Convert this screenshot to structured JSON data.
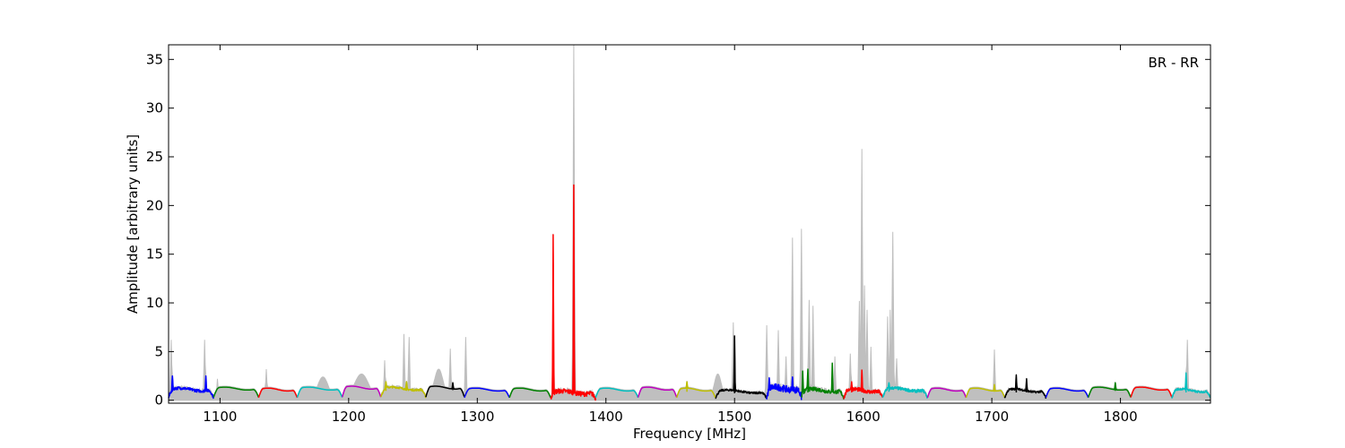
{
  "chart_data": {
    "type": "line",
    "title": "",
    "annotation": "BR - RR",
    "xlabel": "Frequency [MHz]",
    "ylabel": "Amplitude [arbitrary units]",
    "xlim": [
      1060,
      1870
    ],
    "ylim": [
      -0.3,
      36.5
    ],
    "xticks": [
      1100,
      1200,
      1300,
      1400,
      1500,
      1600,
      1700,
      1800
    ],
    "yticks": [
      0,
      5,
      10,
      15,
      20,
      25,
      30,
      35
    ],
    "grid": false,
    "legend": "none",
    "background_series": {
      "color": "#bfbfbf",
      "spikes": [
        [
          1062,
          6.2
        ],
        [
          1088,
          6.2
        ],
        [
          1098,
          2.2
        ],
        [
          1136,
          3.2
        ],
        [
          1228,
          4.1
        ],
        [
          1243,
          6.8
        ],
        [
          1247,
          6.5
        ],
        [
          1279,
          5.3
        ],
        [
          1291,
          6.5
        ],
        [
          1375,
          36.5
        ],
        [
          1499,
          8.0
        ],
        [
          1525,
          7.7
        ],
        [
          1534,
          7.2
        ],
        [
          1540,
          4.5
        ],
        [
          1545,
          16.7
        ],
        [
          1552,
          17.6
        ],
        [
          1558,
          10.3
        ],
        [
          1561,
          9.7
        ],
        [
          1578,
          4.5
        ],
        [
          1590,
          4.8
        ],
        [
          1597,
          10.2
        ],
        [
          1599,
          25.8
        ],
        [
          1601,
          11.8
        ],
        [
          1603,
          9.3
        ],
        [
          1606,
          5.5
        ],
        [
          1619,
          8.6
        ],
        [
          1621,
          9.3
        ],
        [
          1623,
          17.3
        ],
        [
          1626,
          4.3
        ],
        [
          1702,
          5.2
        ],
        [
          1852,
          6.2
        ]
      ],
      "humps": [
        [
          1180,
          2.4,
          6
        ],
        [
          1210,
          2.7,
          8
        ],
        [
          1270,
          3.2,
          5
        ],
        [
          1487,
          2.7,
          4
        ]
      ]
    },
    "series": [
      {
        "color": "#0000ff",
        "x_start": 1060,
        "x_end": 1095,
        "base": 1.1,
        "spikes": [
          [
            1063,
            2.5
          ],
          [
            1089,
            2.5
          ]
        ],
        "noise": 0.15
      },
      {
        "color": "#008000",
        "x_start": 1095,
        "x_end": 1130,
        "base": 1.2,
        "spikes": [],
        "noise": 0
      },
      {
        "color": "#ff0000",
        "x_start": 1130,
        "x_end": 1160,
        "base": 1.1,
        "spikes": [],
        "noise": 0
      },
      {
        "color": "#00bfbf",
        "x_start": 1160,
        "x_end": 1195,
        "base": 1.2,
        "spikes": [],
        "noise": 0
      },
      {
        "color": "#bf00bf",
        "x_start": 1195,
        "x_end": 1225,
        "base": 1.3,
        "spikes": [],
        "noise": 0
      },
      {
        "color": "#bfbf00",
        "x_start": 1225,
        "x_end": 1260,
        "base": 1.2,
        "spikes": [
          [
            1229,
            1.9
          ],
          [
            1245,
            1.9
          ]
        ],
        "noise": 0.1
      },
      {
        "color": "#000000",
        "x_start": 1260,
        "x_end": 1290,
        "base": 1.3,
        "spikes": [
          [
            1281,
            1.8
          ]
        ],
        "noise": 0
      },
      {
        "color": "#0000ff",
        "x_start": 1290,
        "x_end": 1325,
        "base": 1.1,
        "spikes": [],
        "noise": 0
      },
      {
        "color": "#008000",
        "x_start": 1325,
        "x_end": 1357,
        "base": 1.1,
        "spikes": [],
        "noise": 0
      },
      {
        "color": "#ff0000",
        "x_start": 1357,
        "x_end": 1392,
        "base": 0.8,
        "spikes": [
          [
            1359,
            17.0
          ],
          [
            1375,
            22.1
          ]
        ],
        "noise": 0.25
      },
      {
        "color": "#00bfbf",
        "x_start": 1392,
        "x_end": 1425,
        "base": 1.1,
        "spikes": [],
        "noise": 0
      },
      {
        "color": "#bf00bf",
        "x_start": 1425,
        "x_end": 1455,
        "base": 1.2,
        "spikes": [],
        "noise": 0
      },
      {
        "color": "#bfbf00",
        "x_start": 1455,
        "x_end": 1485,
        "base": 1.1,
        "spikes": [
          [
            1463,
            1.9
          ]
        ],
        "noise": 0
      },
      {
        "color": "#000000",
        "x_start": 1485,
        "x_end": 1525,
        "base": 0.9,
        "spikes": [
          [
            1500,
            6.6
          ]
        ],
        "noise": 0.1
      },
      {
        "color": "#0000ff",
        "x_start": 1525,
        "x_end": 1552,
        "base": 1.2,
        "spikes": [
          [
            1527,
            2.3
          ],
          [
            1545,
            2.4
          ]
        ],
        "noise": 0.35
      },
      {
        "color": "#008000",
        "x_start": 1552,
        "x_end": 1585,
        "base": 1.0,
        "spikes": [
          [
            1553,
            3.0
          ],
          [
            1557,
            3.2
          ],
          [
            1576,
            3.8
          ]
        ],
        "noise": 0.2
      },
      {
        "color": "#ff0000",
        "x_start": 1585,
        "x_end": 1615,
        "base": 1.0,
        "spikes": [
          [
            1591,
            1.9
          ],
          [
            1599,
            3.1
          ]
        ],
        "noise": 0.2
      },
      {
        "color": "#00bfbf",
        "x_start": 1615,
        "x_end": 1650,
        "base": 1.1,
        "spikes": [
          [
            1620,
            1.8
          ]
        ],
        "noise": 0.15
      },
      {
        "color": "#bf00bf",
        "x_start": 1650,
        "x_end": 1680,
        "base": 1.1,
        "spikes": [],
        "noise": 0
      },
      {
        "color": "#bfbf00",
        "x_start": 1680,
        "x_end": 1710,
        "base": 1.1,
        "spikes": [
          [
            1702,
            1.6
          ]
        ],
        "noise": 0
      },
      {
        "color": "#000000",
        "x_start": 1710,
        "x_end": 1742,
        "base": 1.0,
        "spikes": [
          [
            1719,
            2.6
          ],
          [
            1727,
            2.2
          ]
        ],
        "noise": 0.1
      },
      {
        "color": "#0000ff",
        "x_start": 1742,
        "x_end": 1775,
        "base": 1.1,
        "spikes": [],
        "noise": 0
      },
      {
        "color": "#008000",
        "x_start": 1775,
        "x_end": 1808,
        "base": 1.2,
        "spikes": [
          [
            1796,
            1.8
          ]
        ],
        "noise": 0
      },
      {
        "color": "#ff0000",
        "x_start": 1808,
        "x_end": 1840,
        "base": 1.2,
        "spikes": [],
        "noise": 0
      },
      {
        "color": "#00bfbf",
        "x_start": 1840,
        "x_end": 1870,
        "base": 1.0,
        "spikes": [
          [
            1851,
            2.8
          ]
        ],
        "noise": 0.1
      }
    ]
  }
}
